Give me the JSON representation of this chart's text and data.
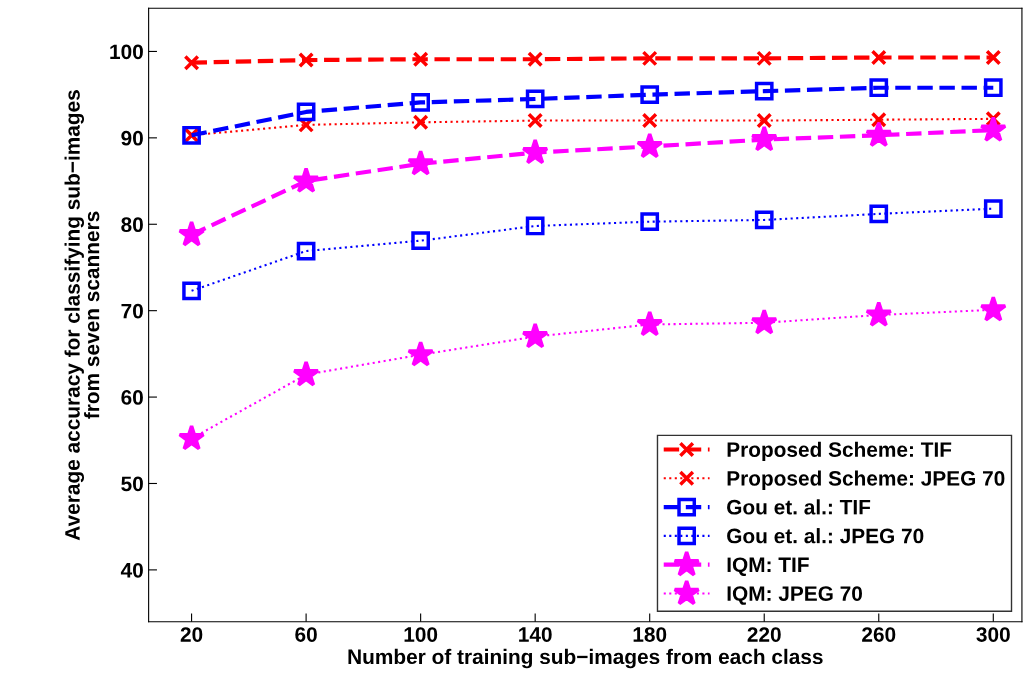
{
  "chart_data": {
    "type": "line",
    "xlabel": "Number of training sub−images from each class",
    "ylabel": "Average accuracy for classifying sub−images\nfrom seven scanners",
    "x": [
      20,
      60,
      100,
      140,
      180,
      220,
      260,
      300
    ],
    "xlim": [
      5,
      310
    ],
    "xticks": [
      20,
      60,
      100,
      140,
      180,
      220,
      260,
      300
    ],
    "ylim": [
      34,
      105
    ],
    "yticks": [
      40,
      50,
      60,
      70,
      80,
      90,
      100
    ],
    "grid": false,
    "legend": "bottom right",
    "series": [
      {
        "name": "Proposed Scheme: TIF",
        "color": "#ff0000",
        "marker": "cross",
        "line_style": "dashed",
        "values": [
          98.7,
          99.0,
          99.1,
          99.1,
          99.2,
          99.2,
          99.3,
          99.3
        ]
      },
      {
        "name": "Proposed Scheme: JPEG 70",
        "color": "#ff0000",
        "marker": "cross",
        "line_style": "dotted",
        "values": [
          90.3,
          91.5,
          91.8,
          92.0,
          92.0,
          92.0,
          92.1,
          92.2
        ]
      },
      {
        "name": "Gou et. al.: TIF",
        "color": "#0000ff",
        "marker": "square",
        "line_style": "dashed",
        "values": [
          90.3,
          93.0,
          94.1,
          94.5,
          95.0,
          95.4,
          95.8,
          95.8
        ]
      },
      {
        "name": "Gou et. al.: JPEG 70",
        "color": "#0000ff",
        "marker": "square",
        "line_style": "dotted",
        "values": [
          72.3,
          76.9,
          78.1,
          79.8,
          80.3,
          80.5,
          81.2,
          81.8
        ]
      },
      {
        "name": "IQM: TIF",
        "color": "#ff00ff",
        "marker": "star",
        "line_style": "dashed",
        "values": [
          78.8,
          85.0,
          87.0,
          88.3,
          89.0,
          89.8,
          90.3,
          90.9
        ]
      },
      {
        "name": "IQM: JPEG 70",
        "color": "#ff00ff",
        "marker": "star",
        "line_style": "dotted",
        "values": [
          55.2,
          62.6,
          64.9,
          67.0,
          68.4,
          68.6,
          69.5,
          70.1
        ]
      }
    ]
  }
}
